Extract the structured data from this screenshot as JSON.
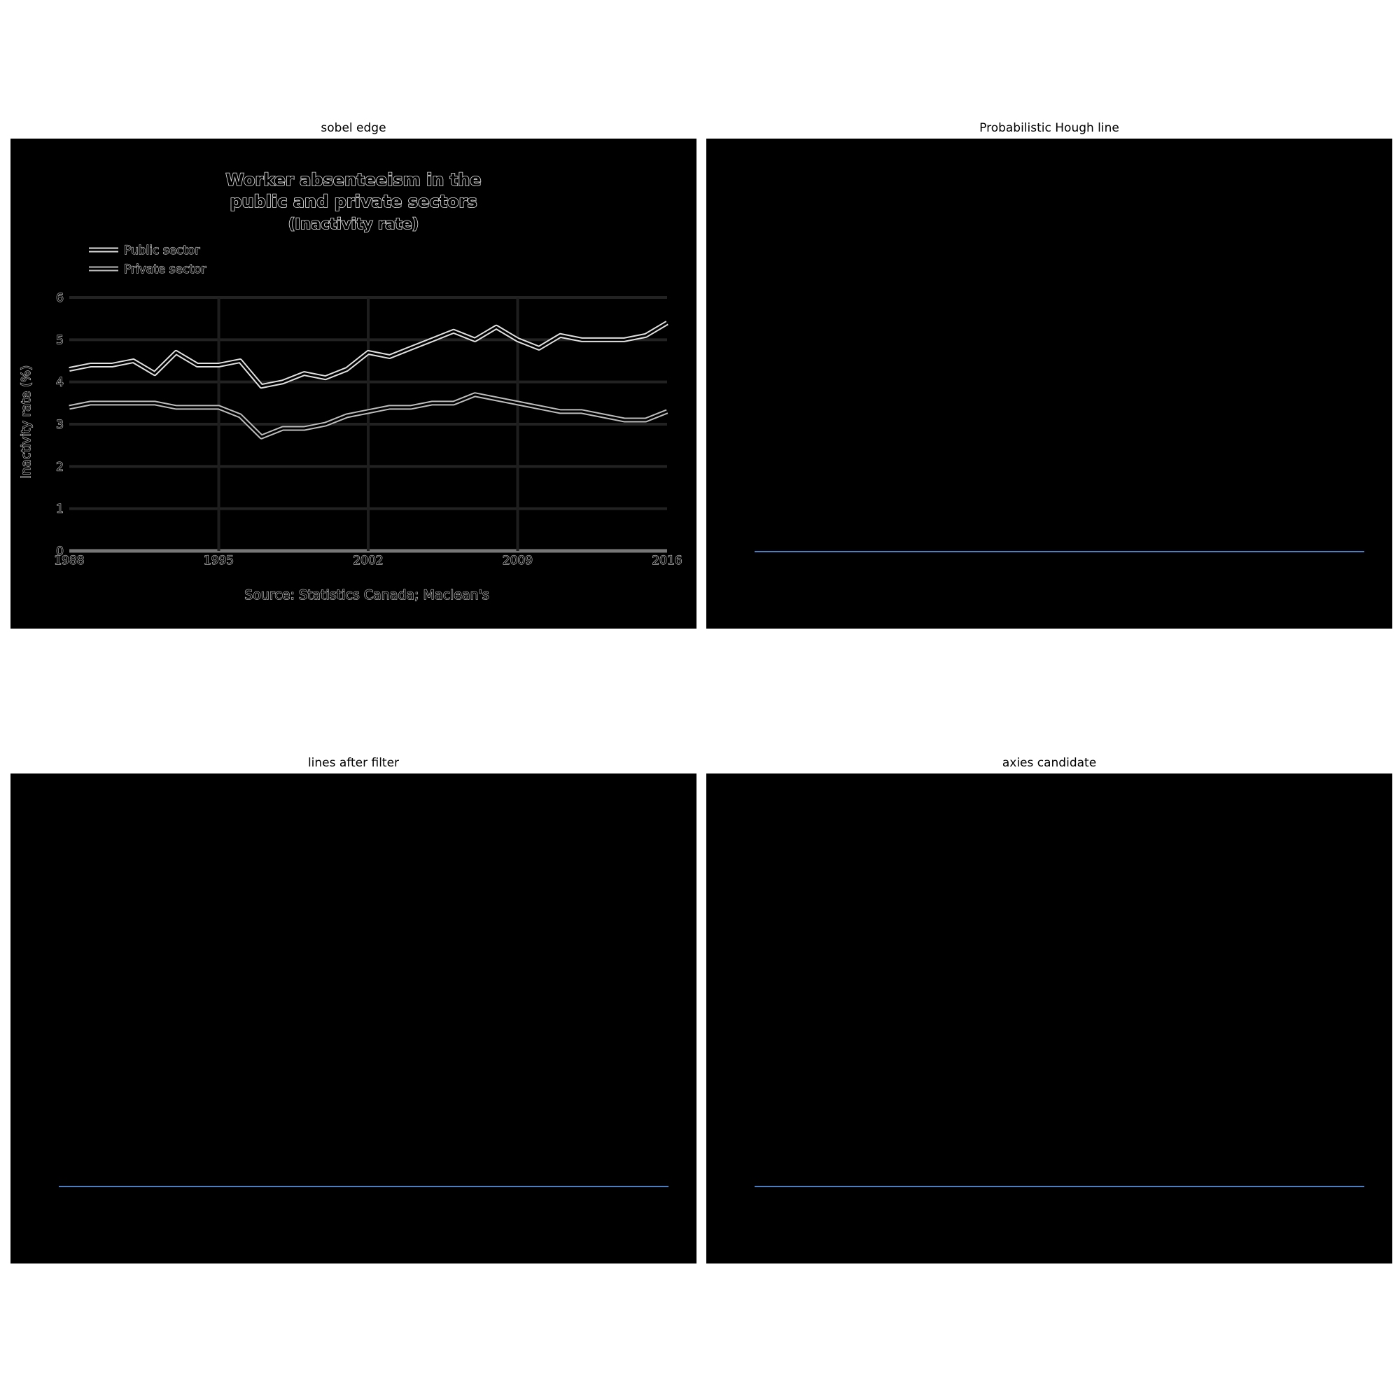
{
  "panels": {
    "sobel_title": "sobel edge",
    "hough_title": "Probabilistic Hough line",
    "filter_title": "lines after filter",
    "axes_title": "axies candidate"
  },
  "colors": {
    "detected_line": "#4a7fc0",
    "edge": "#e6e6e6",
    "background": "#000000"
  },
  "chart_data": {
    "type": "line",
    "title": "Worker absenteeism in the public and private sectors",
    "title_line1": "Worker absenteeism in the",
    "title_line2": "public and private sectors",
    "subtitle": "(Inactivity rate)",
    "ylabel": "Inactivity rate (%)",
    "xlabel": "",
    "source": "Source: Statistics Canada; Maclean's",
    "xlim": [
      1988,
      2016
    ],
    "ylim": [
      0,
      6
    ],
    "xticks": [
      "1988",
      "1995",
      "2002",
      "2009",
      "2016"
    ],
    "yticks": [
      "0",
      "1",
      "2",
      "3",
      "4",
      "5",
      "6"
    ],
    "grid": true,
    "legend_position": "top-left",
    "x": [
      1988,
      1989,
      1990,
      1991,
      1992,
      1993,
      1994,
      1995,
      1996,
      1997,
      1998,
      1999,
      2000,
      2001,
      2002,
      2003,
      2004,
      2005,
      2006,
      2007,
      2008,
      2009,
      2010,
      2011,
      2012,
      2013,
      2014,
      2015,
      2016
    ],
    "series": [
      {
        "name": "Public sector",
        "values": [
          4.3,
          4.4,
          4.4,
          4.5,
          4.2,
          4.7,
          4.4,
          4.4,
          4.5,
          3.9,
          4.0,
          4.2,
          4.1,
          4.3,
          4.7,
          4.6,
          4.8,
          5.0,
          5.2,
          5.0,
          5.3,
          5.0,
          4.8,
          5.1,
          5.0,
          5.0,
          5.0,
          5.1,
          5.4
        ]
      },
      {
        "name": "Private sector",
        "values": [
          3.4,
          3.5,
          3.5,
          3.5,
          3.5,
          3.4,
          3.4,
          3.4,
          3.2,
          2.7,
          2.9,
          2.9,
          3.0,
          3.2,
          3.3,
          3.4,
          3.4,
          3.5,
          3.5,
          3.7,
          3.6,
          3.5,
          3.4,
          3.3,
          3.3,
          3.2,
          3.1,
          3.1,
          3.3
        ]
      }
    ]
  }
}
